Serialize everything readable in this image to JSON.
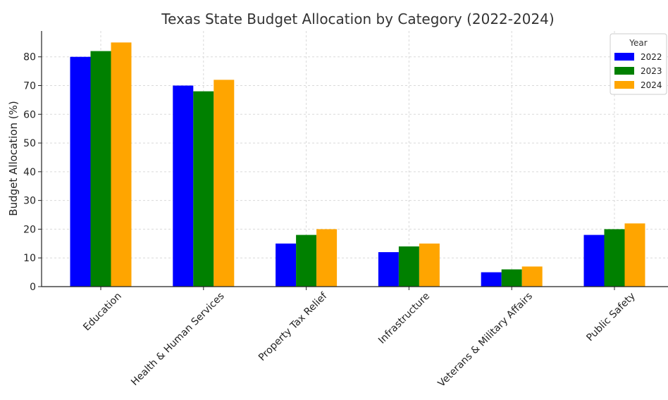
{
  "chart_data": {
    "type": "bar",
    "title": "Texas State Budget Allocation by Category (2022-2024)",
    "xlabel": "",
    "ylabel": "Budget Allocation (%)",
    "ylim": [
      0,
      89
    ],
    "yticks": [
      0,
      10,
      20,
      30,
      40,
      50,
      60,
      70,
      80
    ],
    "grid": true,
    "legend": {
      "title": "Year",
      "placement": "top-right"
    },
    "categories": [
      "Education",
      "Health & Human Services",
      "Property Tax Relief",
      "Infrastructure",
      "Veterans & Military Affairs",
      "Public Safety"
    ],
    "series": [
      {
        "name": "2022",
        "color": "#0000ff",
        "values": [
          80,
          70,
          15,
          12,
          5,
          18
        ]
      },
      {
        "name": "2023",
        "color": "#008000",
        "values": [
          82,
          68,
          18,
          14,
          6,
          20
        ]
      },
      {
        "name": "2024",
        "color": "#ffa500",
        "values": [
          85,
          72,
          20,
          15,
          7,
          22
        ]
      }
    ]
  }
}
